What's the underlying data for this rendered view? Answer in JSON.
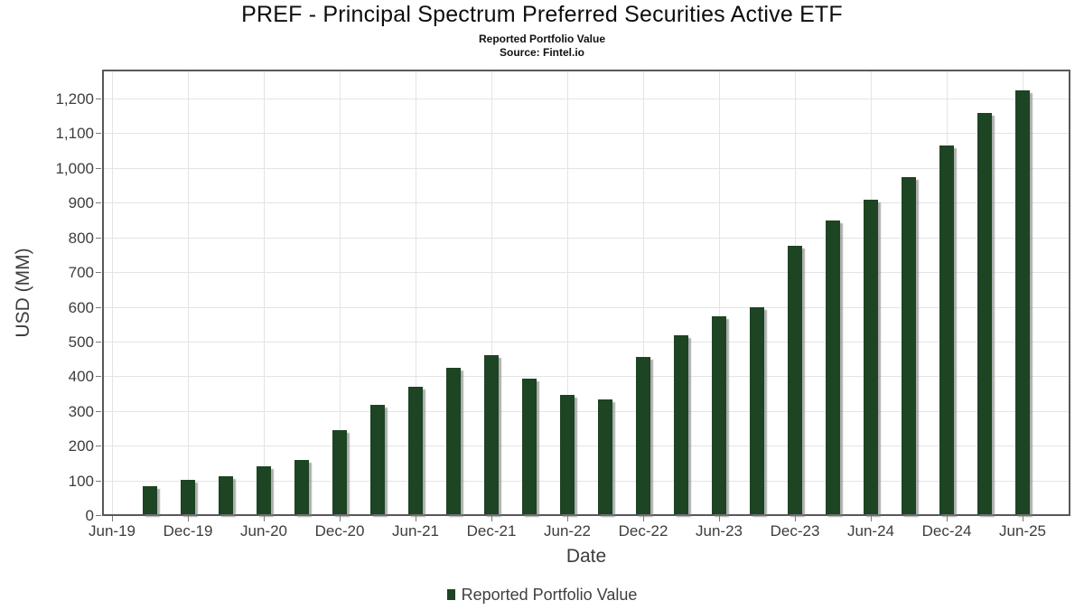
{
  "header": {
    "title": "PREF - Principal Spectrum Preferred Securities Active ETF",
    "subtitle": "Reported Portfolio Value",
    "source": "Source: Fintel.io"
  },
  "axes": {
    "y_label": "USD (MM)",
    "x_label": "Date",
    "y_tick_labels": [
      "0",
      "100",
      "200",
      "300",
      "400",
      "500",
      "600",
      "700",
      "800",
      "900",
      "1,000",
      "1,100",
      "1,200"
    ],
    "x_tick_labels": [
      "Jun-19",
      "Dec-19",
      "Jun-20",
      "Dec-20",
      "Jun-21",
      "Dec-21",
      "Jun-22",
      "Dec-22",
      "Jun-23",
      "Dec-23",
      "Jun-24",
      "Dec-24",
      "Jun-25"
    ]
  },
  "legend": {
    "label": "Reported Portfolio Value",
    "marker_color": "#1d4423"
  },
  "chart_data": {
    "type": "bar",
    "title": "PREF - Principal Spectrum Preferred Securities Active ETF",
    "subtitle": "Reported Portfolio Value",
    "source": "Source: Fintel.io",
    "xlabel": "Date",
    "ylabel": "USD (MM)",
    "ylim": [
      0,
      1285
    ],
    "y_ticks": [
      0,
      100,
      200,
      300,
      400,
      500,
      600,
      700,
      800,
      900,
      1000,
      1100,
      1200
    ],
    "x_tick_labels": [
      "Jun-19",
      "Dec-19",
      "Jun-20",
      "Dec-20",
      "Jun-21",
      "Dec-21",
      "Jun-22",
      "Dec-22",
      "Jun-23",
      "Dec-23",
      "Jun-24",
      "Dec-24",
      "Jun-25"
    ],
    "grid": true,
    "legend_position": "bottom",
    "bar_color": "#1d4423",
    "categories": [
      "Sep-19",
      "Dec-19",
      "Mar-20",
      "Jun-20",
      "Sep-20",
      "Dec-20",
      "Mar-21",
      "Jun-21",
      "Sep-21",
      "Dec-21",
      "Mar-22",
      "Jun-22",
      "Sep-22",
      "Dec-22",
      "Mar-23",
      "Jun-23",
      "Sep-23",
      "Dec-23",
      "Mar-24",
      "Jun-24",
      "Sep-24",
      "Dec-24",
      "Mar-25",
      "Jun-25"
    ],
    "values": [
      80,
      98,
      110,
      139,
      156,
      243,
      314,
      368,
      422,
      457,
      390,
      343,
      330,
      452,
      515,
      570,
      595,
      772,
      847,
      906,
      971,
      1062,
      1156,
      1222
    ],
    "series": [
      {
        "name": "Reported Portfolio Value",
        "values": [
          80,
          98,
          110,
          139,
          156,
          243,
          314,
          368,
          422,
          457,
          390,
          343,
          330,
          452,
          515,
          570,
          595,
          772,
          847,
          906,
          971,
          1062,
          1156,
          1222
        ]
      }
    ]
  }
}
